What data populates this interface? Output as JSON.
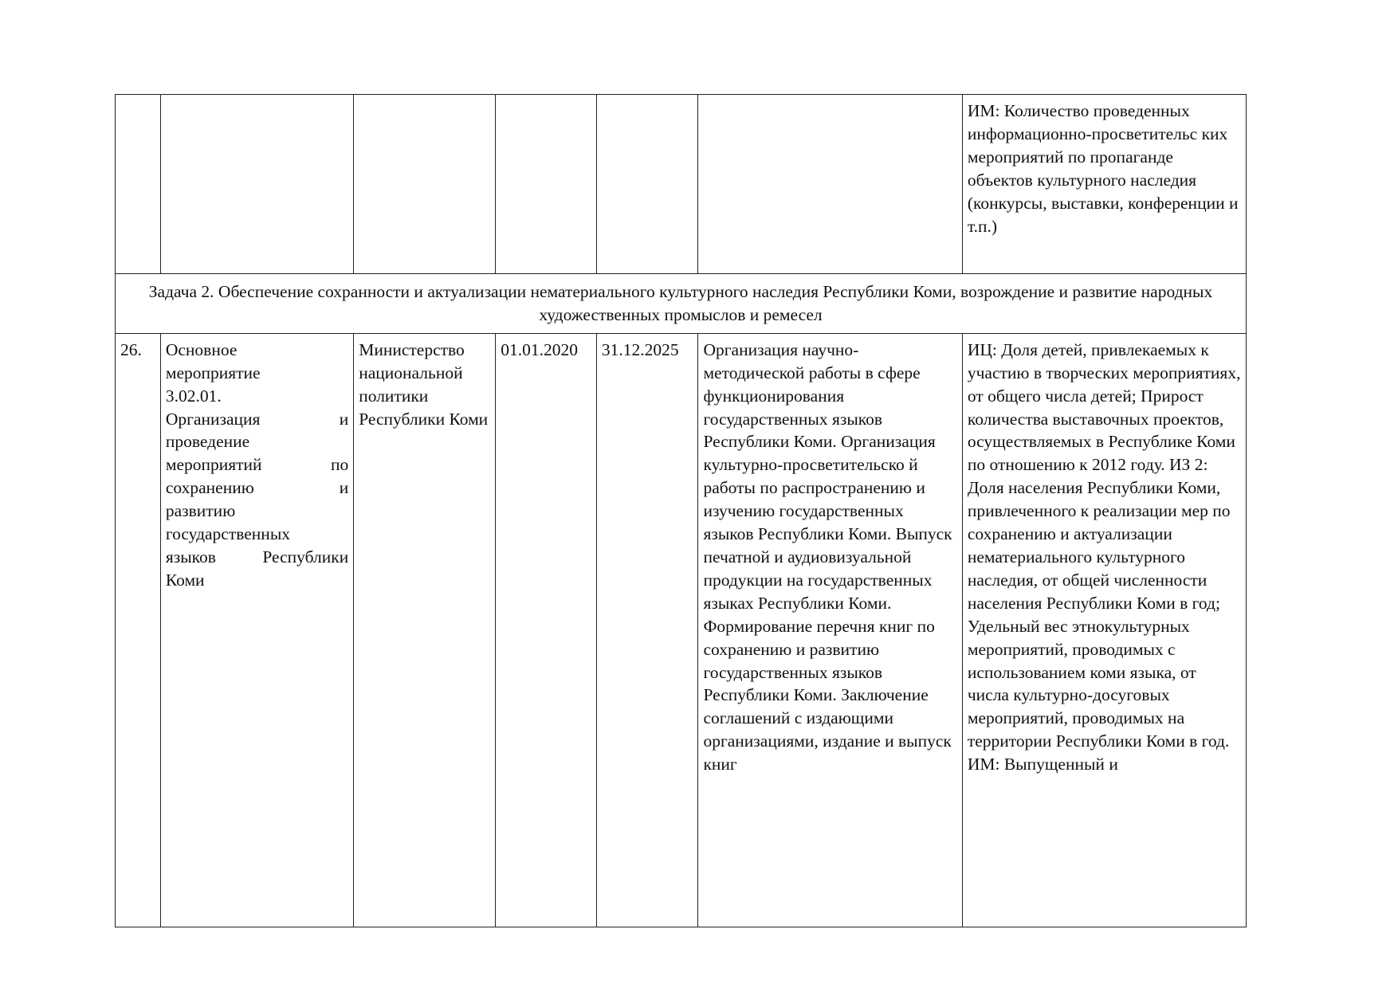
{
  "row_prev": {
    "indicators": "ИМ: Количество проведенных информационно-просветительс ких мероприятий по пропаганде объектов культурного наследия (конкурсы, выставки, конференции и т.п.)"
  },
  "task": "Задача 2. Обеспечение сохранности и актуализации нематериального культурного наследия Республики Коми, возрождение и развитие народных художественных промыслов и ремесел",
  "row26": {
    "number": "26.",
    "measure_lines": [
      "Основное",
      "мероприятие",
      "3.02.01."
    ],
    "measure_justified": [
      [
        "Организация",
        "и"
      ],
      [
        "проведение",
        ""
      ],
      [
        "мероприятий",
        "по"
      ],
      [
        "сохранению",
        "и"
      ],
      [
        "развитию",
        ""
      ],
      [
        "государственных",
        ""
      ],
      [
        "языков",
        "Республики"
      ],
      [
        "Коми",
        ""
      ]
    ],
    "executor": "Министерство национальной политики Республики Коми",
    "start": "01.01.2020",
    "end": "31.12.2025",
    "content": "Организация научно-методической работы в сфере функционирования государственных языков Республики Коми. Организация культурно-просветительско й работы по распространению и изучению государственных языков Республики Коми. Выпуск печатной и аудиовизуальной продукции на государственных языках Республики Коми. Формирование перечня книг по сохранению и развитию государственных языков Республики Коми. Заключение соглашений с издающими организациями, издание и выпуск книг",
    "indicators": "ИЦ: Доля детей, привлекаемых к участию в творческих мероприятиях, от общего числа детей; Прирост количества выставочных проектов, осуществляемых в Республике Коми по отношению к 2012 году. ИЗ 2: Доля населения Республики Коми, привлеченного к реализации мер по сохранению и актуализации нематериального культурного наследия, от общей численности населения Республики Коми в год; Удельный вес этнокультурных мероприятий, проводимых с использованием коми языка, от числа культурно-досуговых мероприятий, проводимых на территории Республики Коми в год. ИМ: Выпущенный и"
  }
}
